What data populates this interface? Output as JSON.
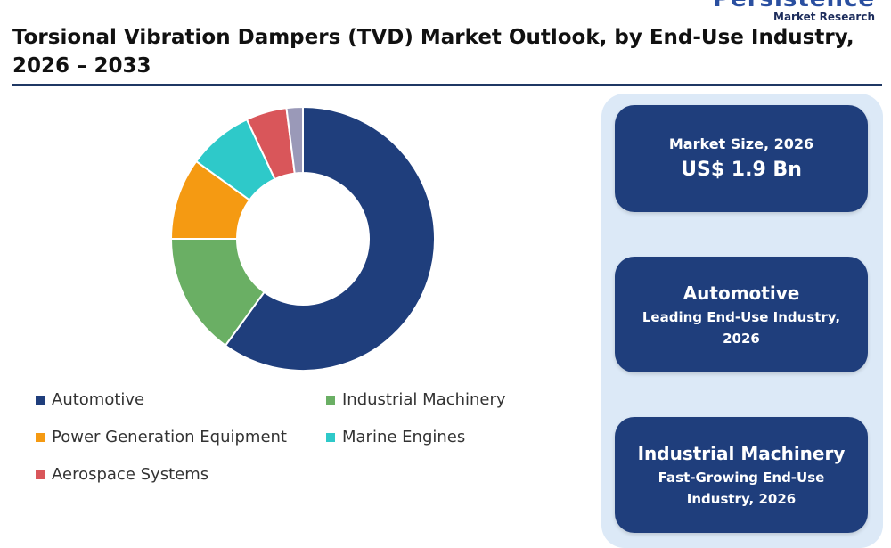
{
  "brand": {
    "name": "Persistence",
    "tagline": "Market Research"
  },
  "title": "Torsional Vibration Dampers (TVD) Market Outlook, by End-Use Industry, 2026 – 2033",
  "chart_data": {
    "type": "pie",
    "donut": true,
    "categories": [
      "Automotive",
      "Industrial Machinery",
      "Power Generation Equipment",
      "Marine Engines",
      "Aerospace Systems",
      "Other"
    ],
    "values": [
      60,
      15,
      10,
      8,
      5,
      2
    ],
    "colors": [
      "#1f3e7c",
      "#6aaf64",
      "#f59a12",
      "#2ec9c9",
      "#d9565a",
      "#9a99b8"
    ],
    "legend": [
      "Automotive",
      "Industrial Machinery",
      "Power Generation Equipment",
      "Marine Engines",
      "Aerospace Systems"
    ],
    "legend_position": "bottom"
  },
  "cards": {
    "market_size": {
      "label": "Market Size, 2026",
      "value": "US$ 1.9 Bn"
    },
    "leading": {
      "title": "Automotive",
      "subtitle": "Leading End-Use Industry, 2026"
    },
    "fast_growing": {
      "title": "Industrial Machinery",
      "subtitle": "Fast-Growing End-Use Industry, 2026"
    }
  }
}
